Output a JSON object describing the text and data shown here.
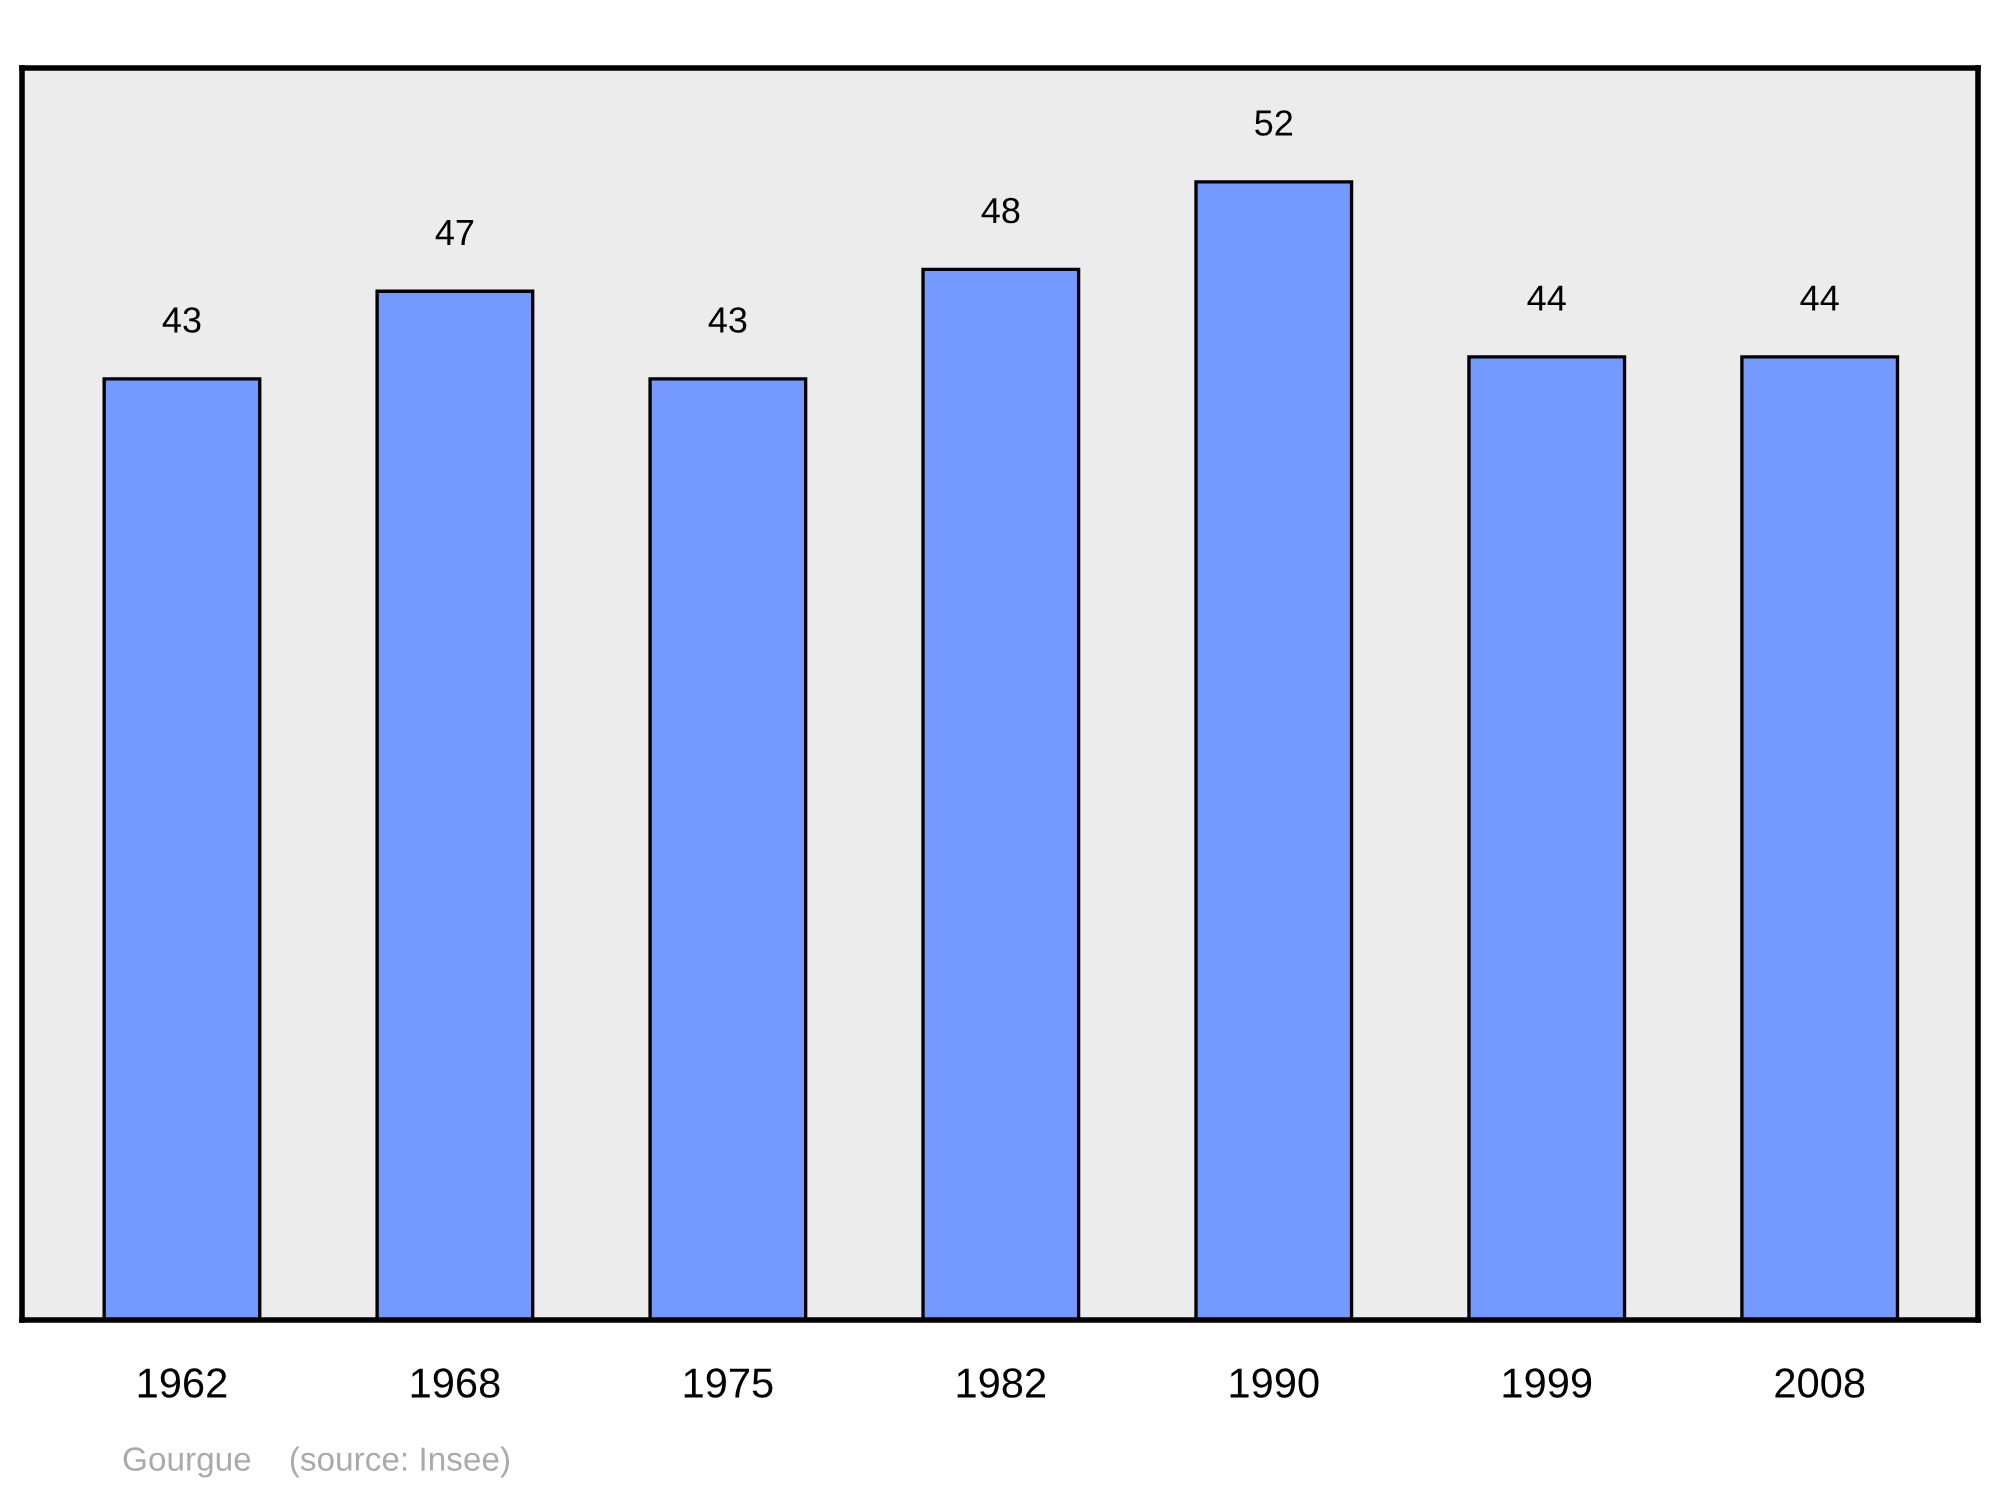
{
  "chart_data": {
    "type": "bar",
    "categories": [
      "1962",
      "1968",
      "1975",
      "1982",
      "1990",
      "1999",
      "2008"
    ],
    "values": [
      43,
      47,
      43,
      48,
      52,
      44,
      44
    ],
    "color": "#7499ff",
    "data_labels": true,
    "grid": false,
    "legend": false,
    "tick_labels": "x",
    "annotations": [
      "Gourgue    (source: Insee)"
    ]
  }
}
